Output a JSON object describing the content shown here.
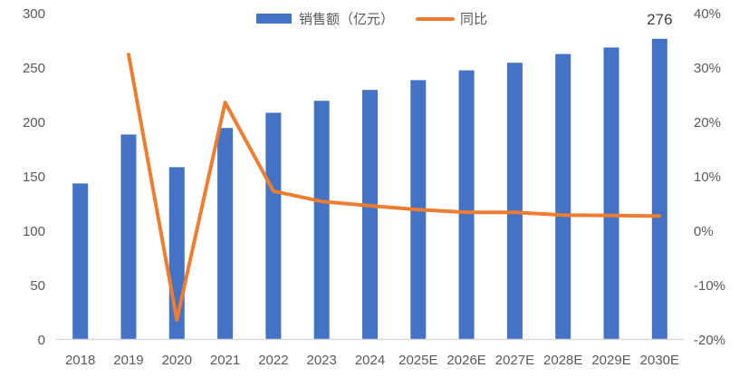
{
  "chart_data": {
    "type": "bar+line",
    "title": "",
    "categories": [
      "2018",
      "2019",
      "2020",
      "2021",
      "2022",
      "2023",
      "2024",
      "2025E",
      "2026E",
      "2027E",
      "2028E",
      "2029E",
      "2030E"
    ],
    "series": [
      {
        "name": "销售额（亿元）",
        "type": "bar",
        "axis": "left",
        "color": "#4472C4",
        "values": [
          143,
          188,
          158,
          194,
          208,
          219,
          229,
          238,
          247,
          254,
          262,
          268,
          276
        ]
      },
      {
        "name": "同比",
        "type": "line",
        "axis": "right",
        "color": "#ED7D31",
        "values": [
          null,
          32.3,
          -16.5,
          23.5,
          7.2,
          5.3,
          4.5,
          3.8,
          3.3,
          3.3,
          2.8,
          2.7,
          2.6
        ],
        "unit": "%"
      }
    ],
    "data_labels": [
      {
        "category": "2030E",
        "series": "销售额（亿元）",
        "text": "276"
      }
    ],
    "left_axis": {
      "ylim": [
        0,
        300
      ],
      "ticks": [
        "0",
        "50",
        "100",
        "150",
        "200",
        "250",
        "300"
      ]
    },
    "right_axis": {
      "ylim": [
        -20,
        40
      ],
      "ticks": [
        "-20%",
        "-10%",
        "0%",
        "10%",
        "20%",
        "30%",
        "40%"
      ]
    },
    "xlabel": "",
    "ylabel": "",
    "grid": false,
    "legend_position": "top"
  },
  "legend": {
    "bar_label": "销售额（亿元）",
    "line_label": "同比"
  }
}
